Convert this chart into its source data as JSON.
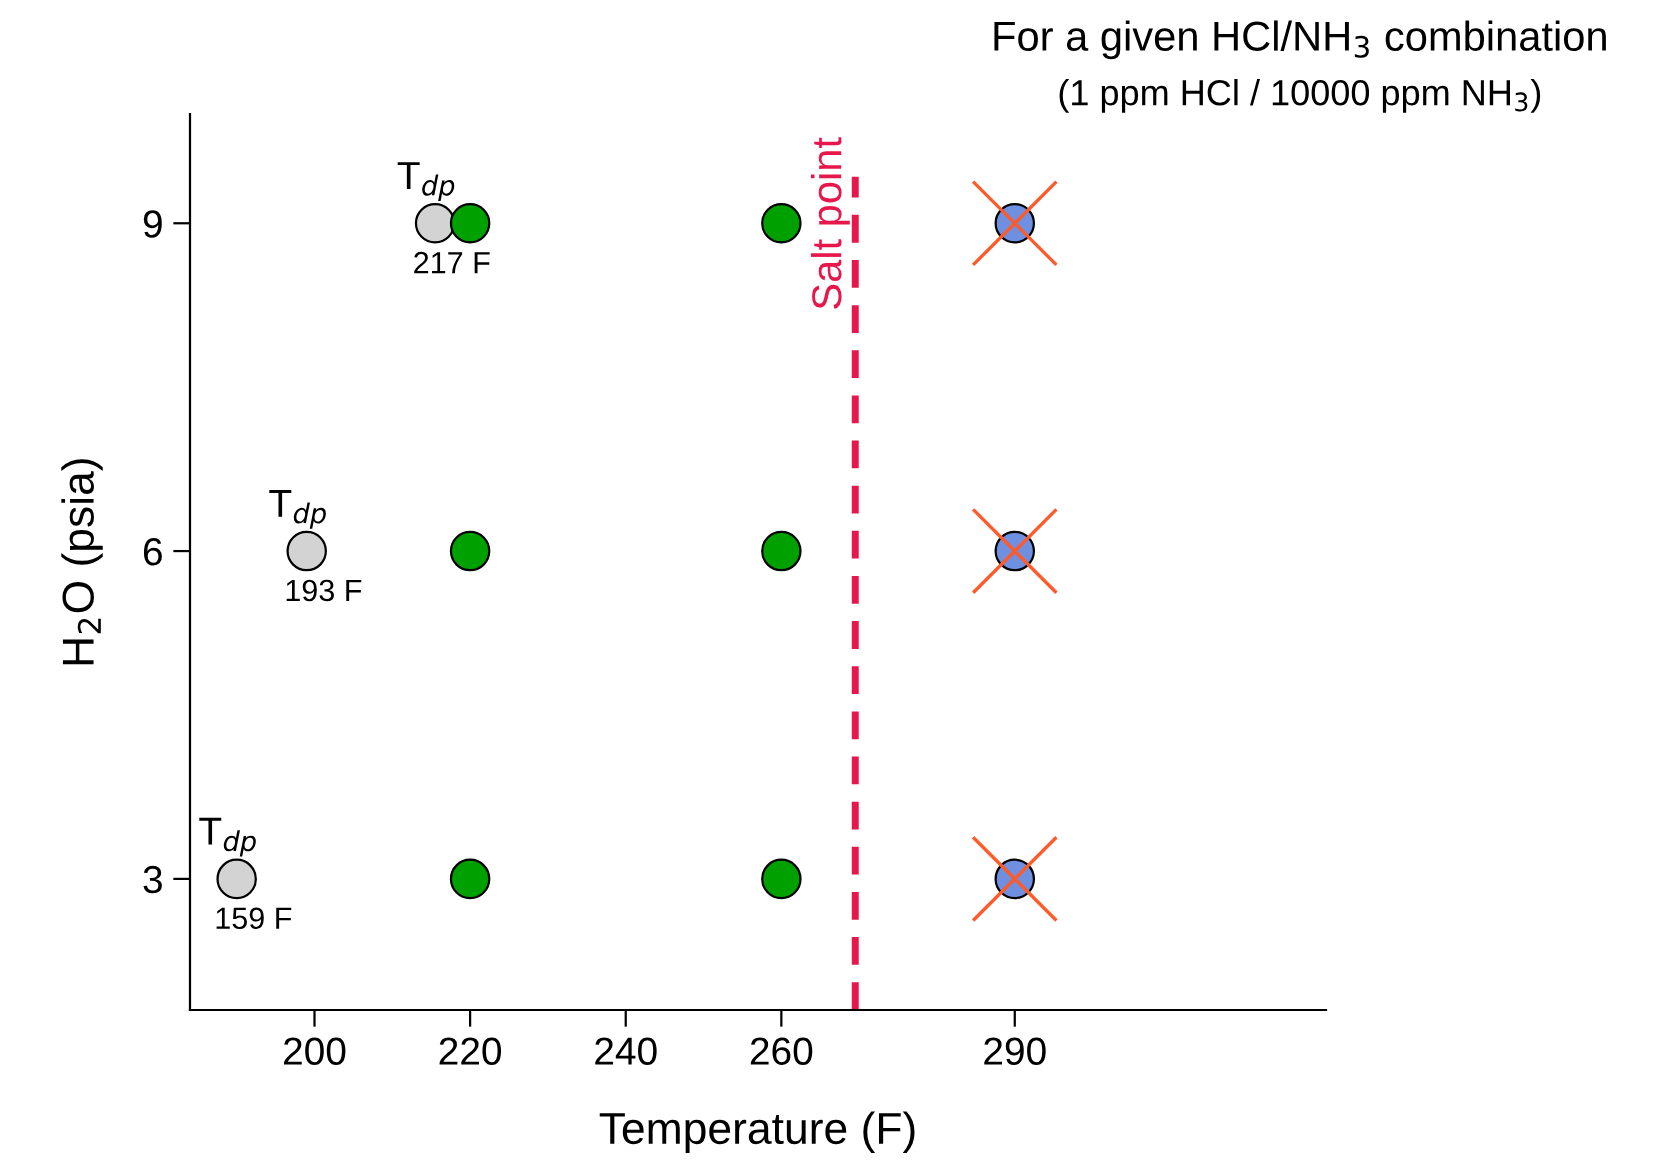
{
  "chart_data": {
    "type": "scatter",
    "title": "For a given HCl/NH$_{3}$ combination",
    "subtitle": "(1 ppm HCl / 10000 ppm NH$_{3}$)",
    "xlabel": "Temperature (F)",
    "ylabel": "H$_{2}$O (psia)",
    "xlim": [
      184,
      330
    ],
    "ylim": [
      1.8,
      10
    ],
    "xticks": [
      200,
      220,
      240,
      260,
      290
    ],
    "yticks": [
      3,
      6,
      9
    ],
    "grid": false,
    "legend": false,
    "series": [
      {
        "x": [
          190,
          199,
          215.5
        ],
        "values": [
          3,
          6,
          9
        ],
        "color": "#d3d3d3",
        "marker": "circle"
      },
      {
        "x": [
          220,
          220,
          220,
          260,
          260,
          260
        ],
        "values": [
          3,
          6,
          9,
          3,
          6,
          9
        ],
        "color": "#00a000",
        "marker": "circle"
      },
      {
        "x": [
          290,
          290,
          290
        ],
        "values": [
          3,
          6,
          9
        ],
        "color": "#6f8fe0",
        "marker": "circle"
      },
      {
        "x": [
          290,
          290,
          290
        ],
        "values": [
          3,
          6,
          9
        ],
        "color": "#ff5a2a",
        "marker": "cross"
      }
    ],
    "ref_lines": [
      {
        "axis": "x",
        "value": 269.5,
        "label": "Salt point",
        "color": "#e8174b",
        "line_style": "dashed"
      }
    ],
    "annotations": [
      {
        "text": "T$_{dp}$",
        "x": 190,
        "y": 3
      },
      {
        "text": "159 F",
        "x": 190,
        "y": 3
      },
      {
        "text": "T$_{dp}$",
        "x": 199,
        "y": 6
      },
      {
        "text": "193 F",
        "x": 199,
        "y": 6
      },
      {
        "text": "T$_{dp}$",
        "x": 215.5,
        "y": 9
      },
      {
        "text": "217 F",
        "x": 215.5,
        "y": 9
      }
    ]
  }
}
